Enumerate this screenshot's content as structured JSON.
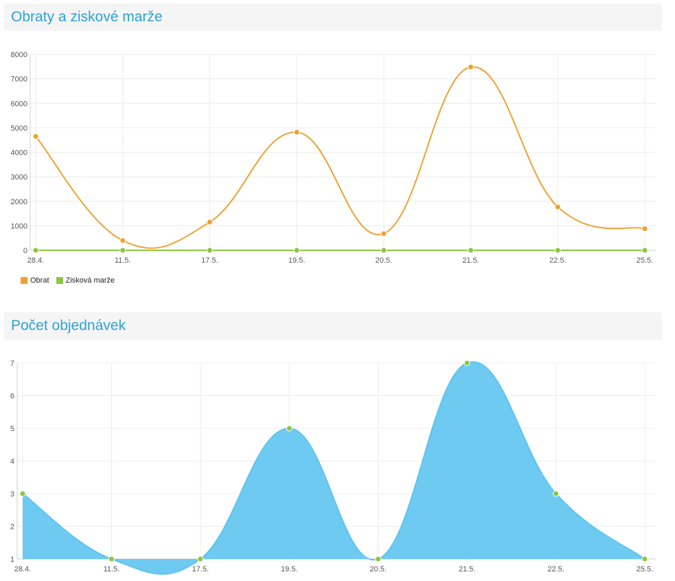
{
  "chart_data": [
    {
      "type": "line",
      "title": "Obraty a ziskové marže",
      "categories": [
        "28.4.",
        "11.5.",
        "17.5.",
        "19.5.",
        "20.5.",
        "21.5.",
        "22.5.",
        "25.5."
      ],
      "series": [
        {
          "name": "Obrat",
          "color": "#f0a030",
          "values": [
            4650,
            400,
            1150,
            4820,
            680,
            7480,
            1770,
            880
          ]
        },
        {
          "name": "Zisková marže",
          "color": "#8cc63f",
          "values": [
            0,
            0,
            0,
            0,
            0,
            0,
            0,
            0
          ]
        }
      ],
      "ylim": [
        0,
        8000
      ],
      "yticks": [
        0,
        1000,
        2000,
        3000,
        4000,
        5000,
        6000,
        7000,
        8000
      ],
      "grid": true,
      "legend": "bottom-left"
    },
    {
      "type": "area",
      "title": "Počet objednávek",
      "categories": [
        "28.4.",
        "11.5.",
        "17.5.",
        "19.5.",
        "20.5.",
        "21.5.",
        "22.5.",
        "25.5."
      ],
      "series": [
        {
          "color": "#5ec4ee",
          "point_color": "#8cc63f",
          "values": [
            3,
            1,
            1,
            5,
            1,
            7,
            3,
            1
          ]
        }
      ],
      "ylim": [
        1,
        7
      ],
      "yticks": [
        1,
        2,
        3,
        4,
        5,
        6,
        7
      ],
      "grid": true
    }
  ]
}
